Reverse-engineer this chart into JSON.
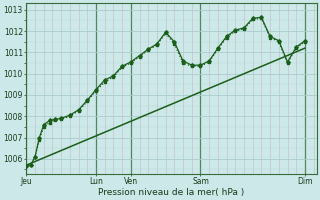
{
  "bg_color": "#cce8e8",
  "grid_color_major": "#aacccc",
  "grid_color_minor": "#c8b8b8",
  "line_color": "#1a5e1a",
  "xlabel": "Pression niveau de la mer( hPa )",
  "ylim": [
    1005.3,
    1013.3
  ],
  "yticks": [
    1006,
    1007,
    1008,
    1009,
    1010,
    1011,
    1012,
    1013
  ],
  "major_xtick_positions": [
    0,
    48,
    72,
    120,
    192
  ],
  "major_xtick_labels": [
    "Jeu",
    "Lun",
    "Ven",
    "Sam",
    "Dim"
  ],
  "series1_x": [
    0,
    3,
    6,
    9,
    12,
    16,
    20,
    24,
    30,
    36,
    42,
    48,
    54,
    60,
    66,
    72,
    78,
    84,
    90,
    96,
    102,
    108,
    114,
    120,
    126,
    132,
    138,
    144,
    150,
    156,
    162,
    168,
    174,
    180,
    186,
    192
  ],
  "series1_y": [
    1005.65,
    1005.7,
    1006.1,
    1006.9,
    1007.5,
    1007.7,
    1007.8,
    1007.85,
    1008.0,
    1008.25,
    1008.7,
    1009.2,
    1009.6,
    1009.85,
    1010.3,
    1010.5,
    1010.8,
    1011.1,
    1011.35,
    1011.9,
    1011.4,
    1010.5,
    1010.35,
    1010.35,
    1010.55,
    1011.15,
    1011.7,
    1012.0,
    1012.1,
    1012.55,
    1012.6,
    1011.7,
    1011.5,
    1010.5,
    1011.2,
    1011.5
  ],
  "series2_x": [
    0,
    3,
    6,
    9,
    12,
    16,
    20,
    24,
    30,
    36,
    42,
    48,
    54,
    60,
    66,
    72,
    78,
    84,
    90,
    96,
    102,
    108,
    114,
    120,
    126,
    132,
    138,
    144,
    150,
    156,
    162,
    168,
    174,
    180,
    186,
    192
  ],
  "series2_y": [
    1005.65,
    1005.7,
    1006.1,
    1007.0,
    1007.6,
    1007.8,
    1007.85,
    1007.9,
    1008.05,
    1008.3,
    1008.75,
    1009.25,
    1009.7,
    1009.9,
    1010.35,
    1010.55,
    1010.85,
    1011.15,
    1011.4,
    1011.95,
    1011.5,
    1010.6,
    1010.4,
    1010.4,
    1010.6,
    1011.2,
    1011.75,
    1012.05,
    1012.15,
    1012.6,
    1012.65,
    1011.75,
    1011.55,
    1010.55,
    1011.25,
    1011.55
  ],
  "trend_x": [
    0,
    192
  ],
  "trend_y": [
    1005.7,
    1011.2
  ],
  "xlim": [
    0,
    200
  ]
}
